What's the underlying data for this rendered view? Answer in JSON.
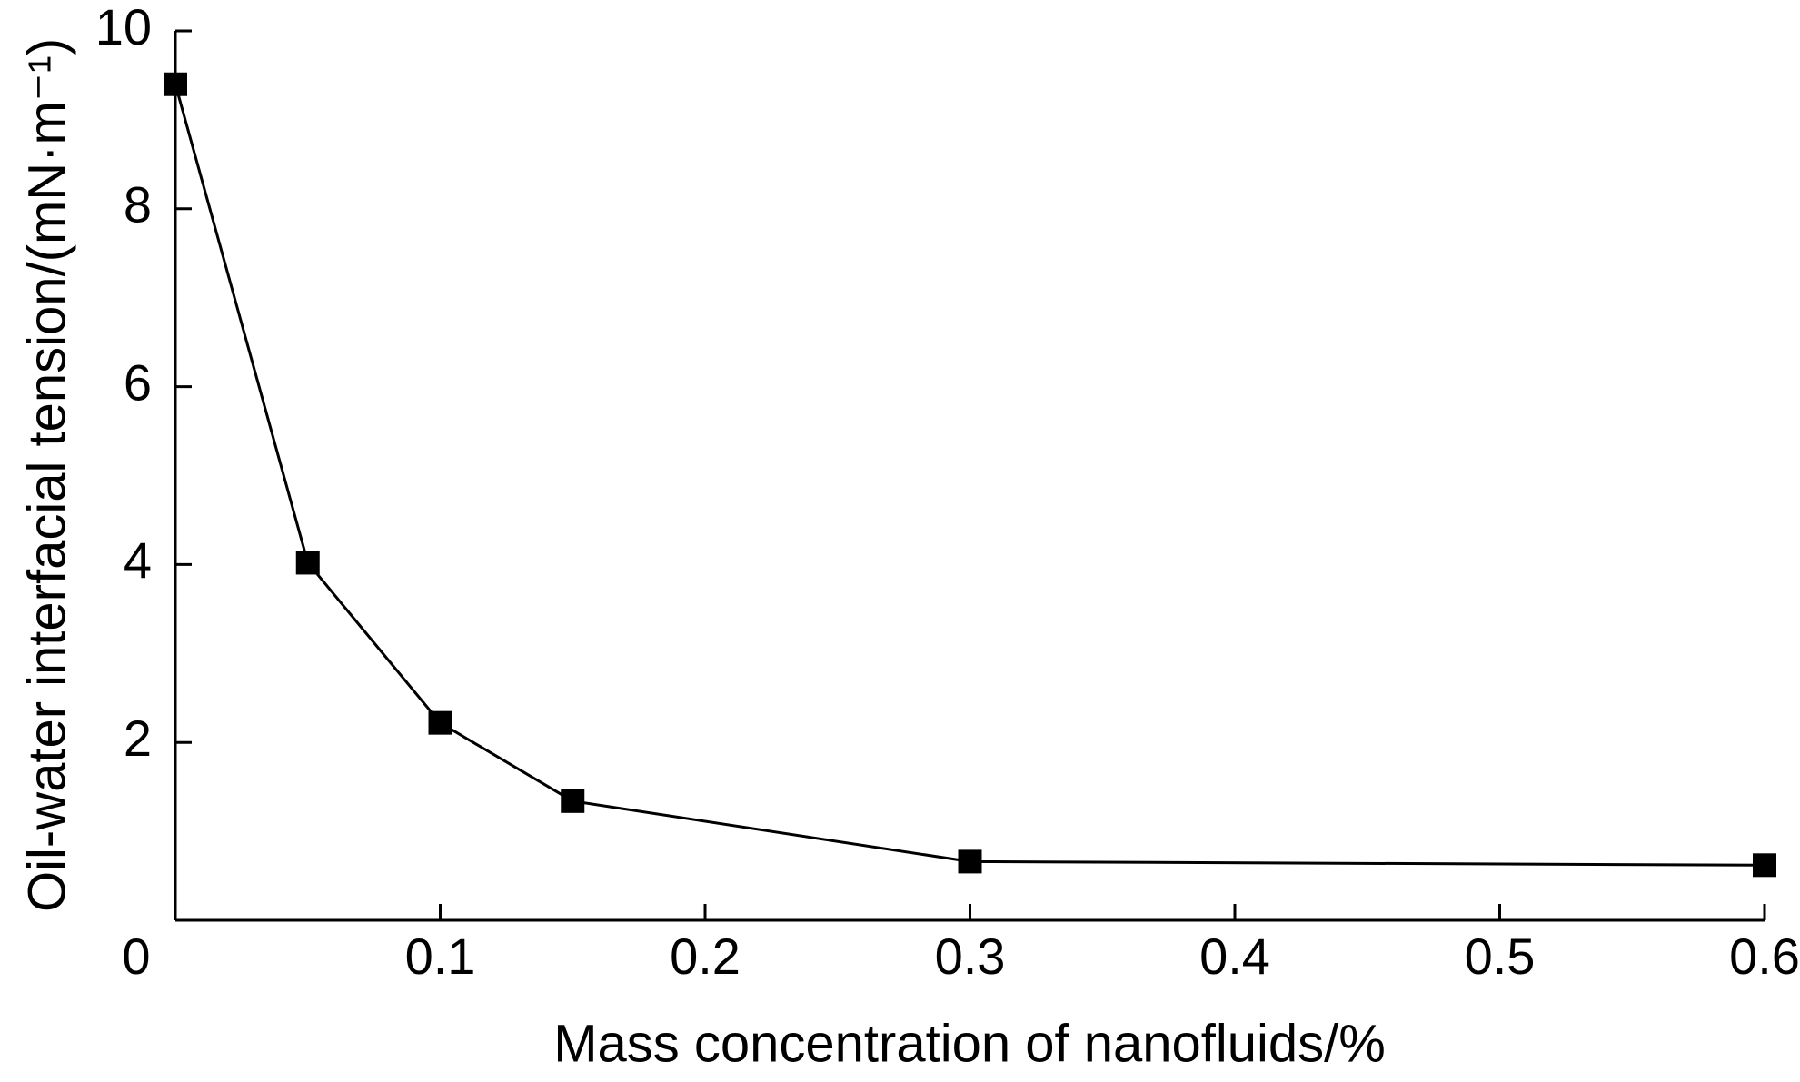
{
  "chart_data": {
    "type": "line",
    "title": "",
    "xlabel": "Mass concentration of nanofluids/%",
    "ylabel": "Oil-water interfacial tension/(mN·m⁻¹)",
    "xlim": [
      0,
      0.6
    ],
    "ylim": [
      0,
      10
    ],
    "x_ticks": [
      "0.1",
      "0.2",
      "0.3",
      "0.4",
      "0.5",
      "0.6"
    ],
    "x_tick_values": [
      0.1,
      0.2,
      0.3,
      0.4,
      0.5,
      0.6
    ],
    "y_ticks": [
      "2",
      "4",
      "6",
      "8",
      "10"
    ],
    "y_tick_values": [
      2,
      4,
      6,
      8,
      10
    ],
    "origin_label": "0",
    "grid": false,
    "legend": "none",
    "marker": "filled-square",
    "line_color": "#000000",
    "series": [
      {
        "x": [
          0.0,
          0.05,
          0.1,
          0.15,
          0.3,
          0.6
        ],
        "y": [
          9.4,
          4.02,
          2.22,
          1.34,
          0.66,
          0.62
        ]
      }
    ]
  }
}
